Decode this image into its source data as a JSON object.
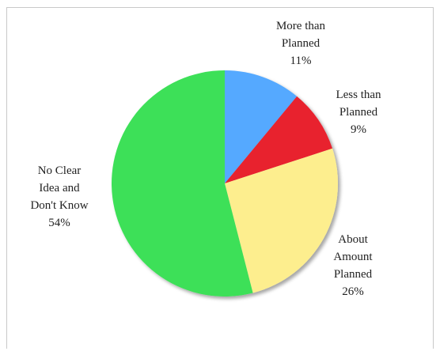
{
  "chart_data": {
    "type": "pie",
    "slices": [
      {
        "label_lines": [
          "More than",
          "Planned"
        ],
        "percent_label": "11%",
        "value": 11,
        "color": "#54a9ff"
      },
      {
        "label_lines": [
          "Less than",
          "Planned"
        ],
        "percent_label": "9%",
        "value": 9,
        "color": "#e8202f"
      },
      {
        "label_lines": [
          "About",
          "Amount",
          "Planned"
        ],
        "percent_label": "26%",
        "value": 26,
        "color": "#fdee8e"
      },
      {
        "label_lines": [
          "No Clear",
          "Idea and",
          "Don't Know"
        ],
        "percent_label": "54%",
        "value": 54,
        "color": "#3de058"
      }
    ],
    "start_angle": "12 o'clock",
    "direction": "clockwise",
    "legend": "none",
    "title": ""
  }
}
